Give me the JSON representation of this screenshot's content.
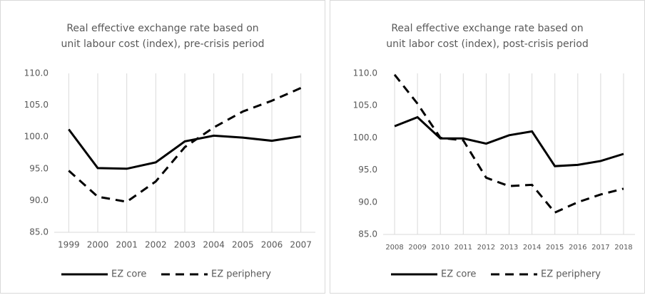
{
  "chart_data": [
    {
      "type": "line",
      "title": "Real effective exchange rate based on unit labour cost (index), pre-crisis period",
      "categories": [
        "1999",
        "2000",
        "2001",
        "2002",
        "2003",
        "2004",
        "2005",
        "2006",
        "2007"
      ],
      "series": [
        {
          "name": "EZ core",
          "color": "#000000",
          "line_style": "solid",
          "values": [
            101.2,
            95.1,
            95.0,
            96.0,
            99.3,
            100.2,
            99.9,
            99.4,
            100.1
          ]
        },
        {
          "name": "EZ periphery",
          "color": "#000000",
          "line_style": "dashed",
          "values": [
            94.7,
            90.6,
            89.8,
            93.0,
            98.4,
            101.5,
            104.0,
            105.7,
            107.7
          ]
        }
      ],
      "ylim": [
        85,
        110
      ],
      "yticks": [
        {
          "value": 85,
          "label": "85.0"
        },
        {
          "value": 90,
          "label": "90.0"
        },
        {
          "value": 95,
          "label": "95.0"
        },
        {
          "value": 100,
          "label": "100.0"
        },
        {
          "value": 105,
          "label": "105.0"
        },
        {
          "value": 110,
          "label": "110.0"
        }
      ],
      "grid": "vertical",
      "legend": "bottom"
    },
    {
      "type": "line",
      "title": "Real effective exchange rate based on unit labor cost (index), post-crisis period",
      "categories": [
        "2008",
        "2009",
        "2010",
        "2011",
        "2012",
        "2013",
        "2014",
        "2015",
        "2016",
        "2017",
        "2018"
      ],
      "series": [
        {
          "name": "EZ core",
          "color": "#000000",
          "line_style": "solid",
          "values": [
            101.8,
            103.2,
            99.9,
            99.9,
            99.1,
            100.4,
            101.0,
            95.6,
            95.8,
            96.4,
            97.5
          ]
        },
        {
          "name": "EZ periphery",
          "color": "#000000",
          "line_style": "dashed",
          "values": [
            109.8,
            105.3,
            100.0,
            99.6,
            93.8,
            92.5,
            92.7,
            88.4,
            90.0,
            91.2,
            92.1
          ]
        }
      ],
      "ylim": [
        85,
        110
      ],
      "yticks": [
        {
          "value": 85,
          "label": "85.0"
        },
        {
          "value": 90,
          "label": "90.0"
        },
        {
          "value": 95,
          "label": "95.0"
        },
        {
          "value": 100,
          "label": "100.0"
        },
        {
          "value": 105,
          "label": "105.0"
        },
        {
          "value": 110,
          "label": "110.0"
        }
      ],
      "grid": "vertical",
      "legend": "bottom"
    }
  ]
}
